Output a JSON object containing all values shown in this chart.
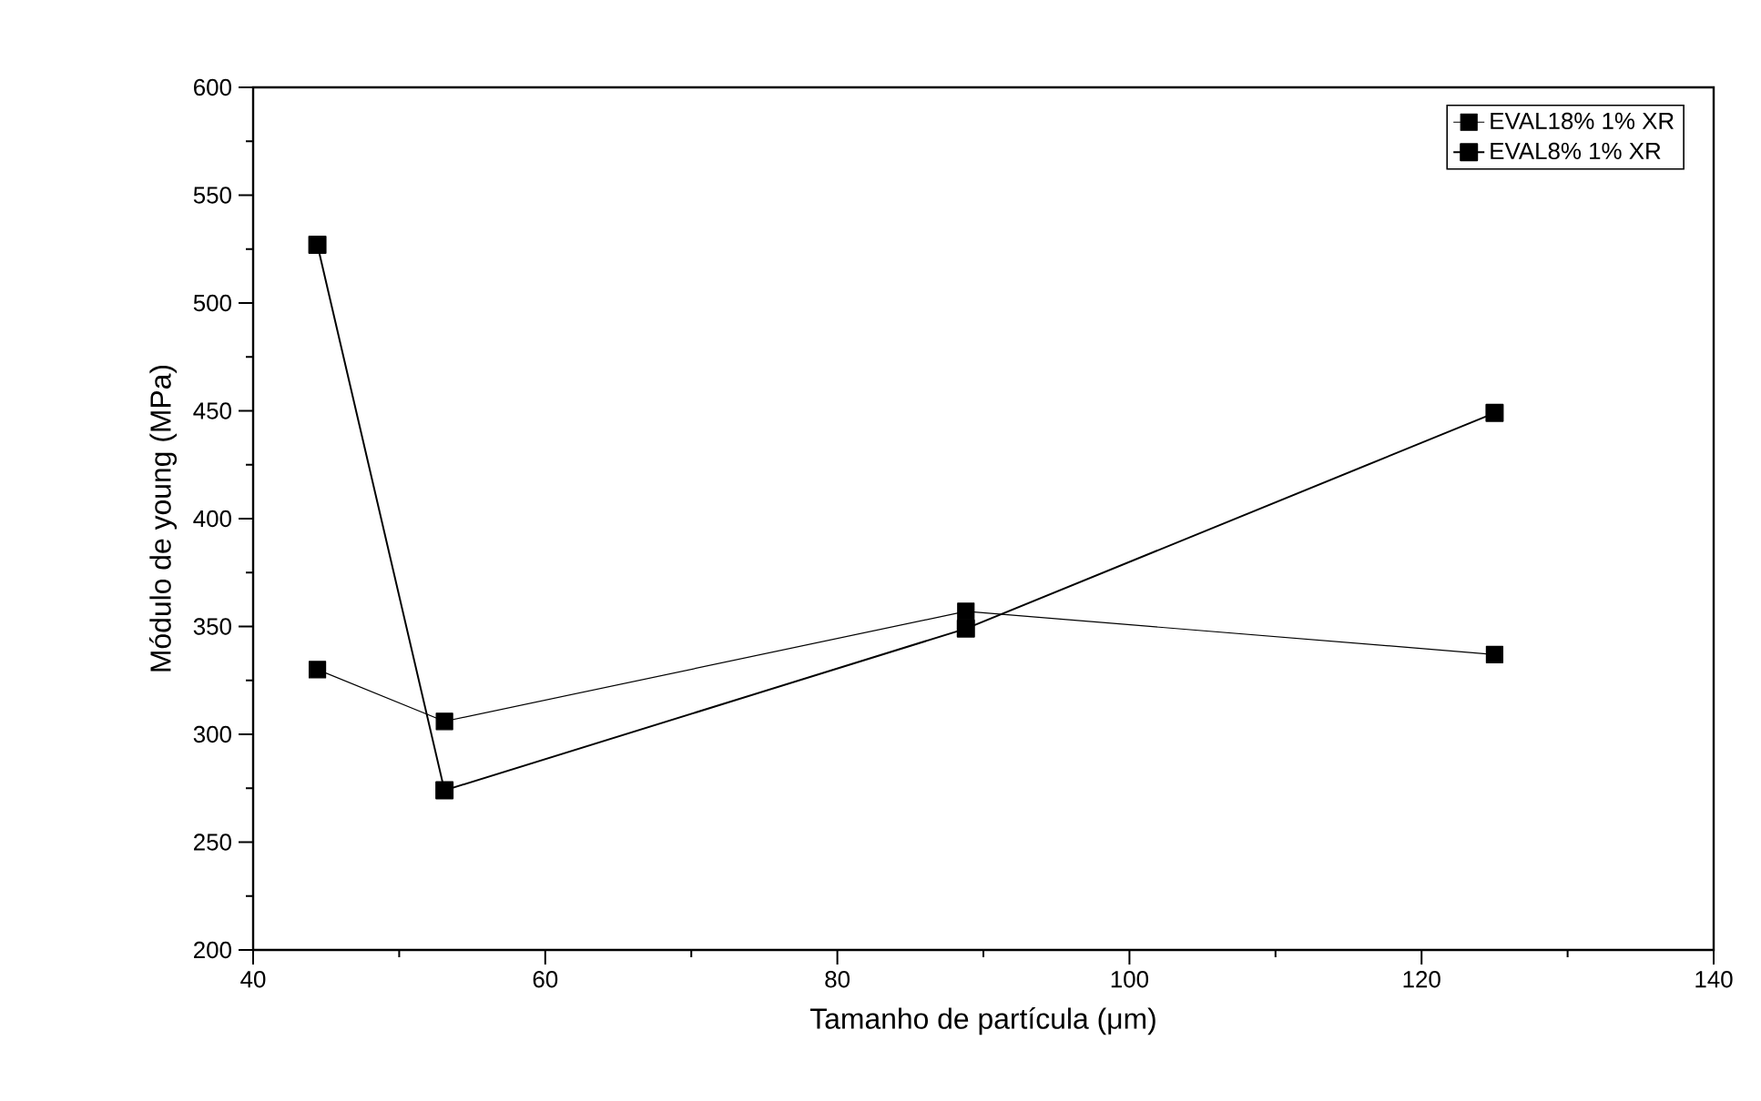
{
  "chart_data": {
    "type": "line",
    "xlabel": "Tamanho de partícula (μm)",
    "ylabel": "Módulo de young (MPa)",
    "xlim": [
      40,
      140
    ],
    "xticks": [
      40,
      60,
      80,
      100,
      120,
      140
    ],
    "ylim": [
      200,
      600
    ],
    "yticks": [
      200,
      250,
      300,
      350,
      400,
      450,
      500,
      550,
      600
    ],
    "x": [
      44.4,
      53.1,
      88.8,
      125
    ],
    "series": [
      {
        "name": "EVAL18% 1% XR",
        "color": "#000000",
        "values": [
          330,
          306,
          357,
          337
        ]
      },
      {
        "name": "EVAL8% 1% XR",
        "color": "#000000",
        "values": [
          527,
          274,
          349,
          449
        ]
      }
    ],
    "marker": "square",
    "line_style": "solid",
    "legend": "top right",
    "grid": false
  }
}
